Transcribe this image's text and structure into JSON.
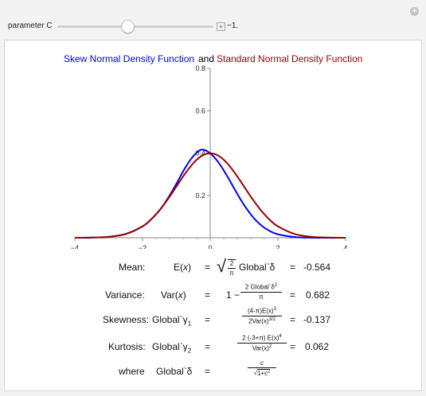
{
  "controls": {
    "param_label": "parameter C",
    "param_value": "−1.",
    "param_fraction": 0.45
  },
  "chart_data": {
    "type": "line",
    "title_parts": [
      "Skew Normal Density Function",
      "and",
      "Standard Normal Density Function"
    ],
    "title_colors": [
      "#0000ff",
      "#000000",
      "#990000"
    ],
    "xlim": [
      -4,
      4
    ],
    "ylim": [
      0,
      0.8
    ],
    "x_ticks": [
      -4,
      -2,
      0,
      2,
      4
    ],
    "x_tick_labels": [
      "−4",
      "−2",
      "0",
      "2",
      "4"
    ],
    "y_ticks": [
      0.2,
      0.4,
      0.6,
      0.8
    ],
    "y_tick_labels": [
      "0.2",
      "0.4",
      "0.6",
      "0.8"
    ],
    "series": [
      {
        "name": "Skew Normal Density Function",
        "color": "#0000ff",
        "x": [
          -4,
          -3.5,
          -3,
          -2.5,
          -2,
          -1.75,
          -1.5,
          -1.25,
          -1,
          -0.75,
          -0.5,
          -0.25,
          0,
          0.25,
          0.5,
          0.75,
          1,
          1.25,
          1.5,
          1.75,
          2,
          2.5,
          3,
          3.5,
          4
        ],
        "y": [
          0.0001,
          0.0009,
          0.0044,
          0.0175,
          0.0537,
          0.0862,
          0.129,
          0.1866,
          0.2547,
          0.3275,
          0.3855,
          0.4163,
          0.3989,
          0.3547,
          0.2916,
          0.2213,
          0.155,
          0.1,
          0.0597,
          0.0327,
          0.0165,
          0.0035,
          0.0005,
          0.0001,
          0.0
        ]
      },
      {
        "name": "Standard Normal Density Function",
        "color": "#990000",
        "x": [
          -4,
          -3.5,
          -3,
          -2.5,
          -2,
          -1.75,
          -1.5,
          -1.25,
          -1,
          -0.75,
          -0.5,
          -0.25,
          0,
          0.25,
          0.5,
          0.75,
          1,
          1.25,
          1.5,
          1.75,
          2,
          2.5,
          3,
          3.5,
          4
        ],
        "y": [
          0.0001,
          0.0009,
          0.0044,
          0.0175,
          0.054,
          0.0863,
          0.1295,
          0.1826,
          0.242,
          0.3011,
          0.3521,
          0.3867,
          0.3989,
          0.3867,
          0.3521,
          0.3011,
          0.242,
          0.1826,
          0.1295,
          0.0863,
          0.054,
          0.0175,
          0.0044,
          0.0009,
          0.0001
        ]
      }
    ]
  },
  "formulas": {
    "eq": "=",
    "mean": {
      "label": "Mean:",
      "lhs_pre": "E(",
      "lhs_var": "x",
      "lhs_post": ")",
      "sqrt": "√",
      "num": "2",
      "den": "π",
      "rhs_tail": "Global`δ",
      "value": "-0.564"
    },
    "variance": {
      "label": "Variance:",
      "lhs_pre": "Var(",
      "lhs_var": "x",
      "lhs_post": ")",
      "one_minus": "1 −",
      "num": "2 Global`δ",
      "num_sup": "2",
      "den": "π",
      "value": "0.682"
    },
    "skewness": {
      "label": "Skewness:",
      "lhs": "Global`γ",
      "lhs_sub": "1",
      "num": "(4-π)E(x)",
      "num_sup": "3",
      "den": "2Var(x)",
      "den_sup": "3/2",
      "value": "-0.137"
    },
    "kurtosis": {
      "label": "Kurtosis:",
      "lhs": "Global`γ",
      "lhs_sub": "2",
      "num": "2 (-3+π) E(x)",
      "num_sup": "4",
      "den": "Var(x)",
      "den_sup": "2",
      "value": "0.062"
    },
    "where": {
      "label": "where",
      "lhs": "Global`δ",
      "num": "c",
      "den_sqrt": "√",
      "den": "1+c",
      "den_sup": "2"
    }
  }
}
